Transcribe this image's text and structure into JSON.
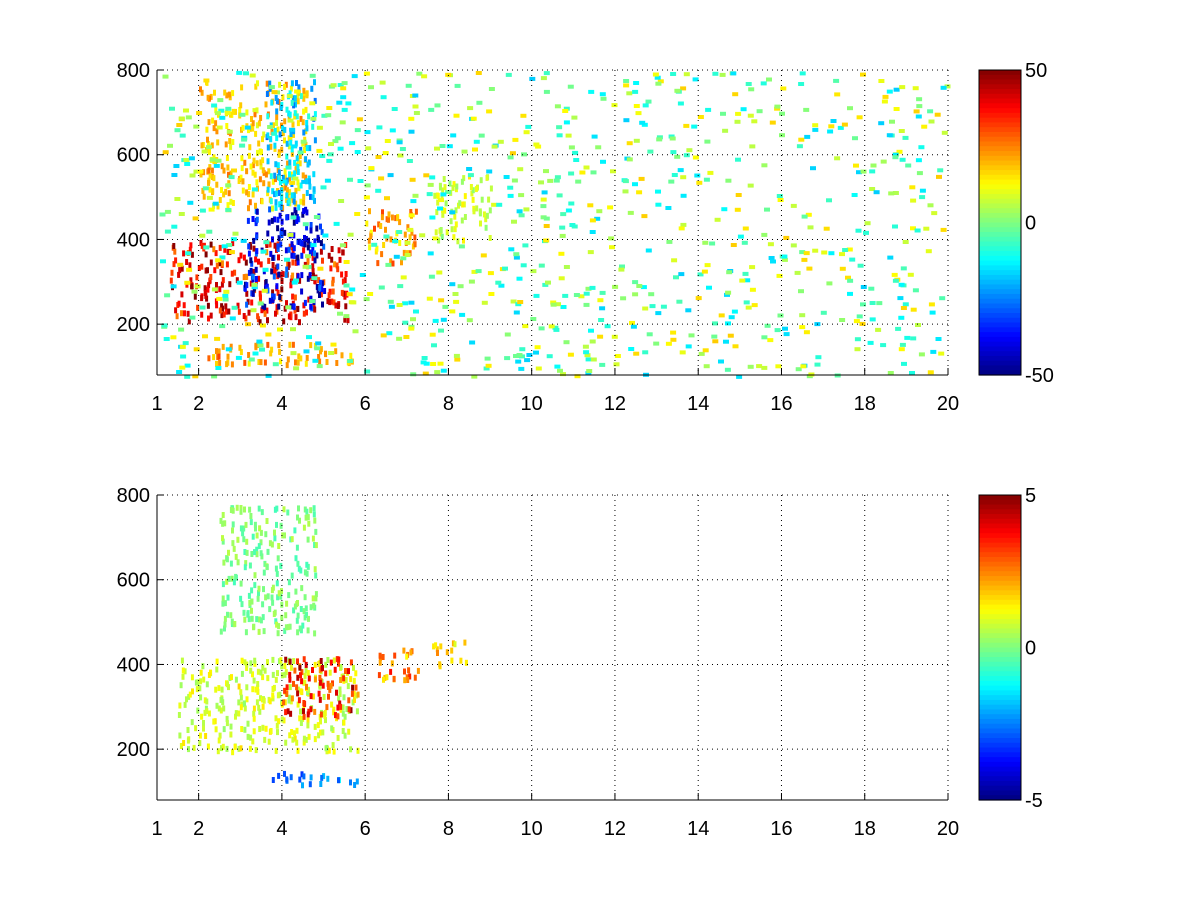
{
  "chart_data": [
    {
      "type": "heatmap",
      "title": "",
      "xlabel": "",
      "ylabel": "",
      "xlim": [
        1,
        20
      ],
      "ylim": [
        80,
        800
      ],
      "x_ticks": [
        1,
        2,
        4,
        6,
        8,
        10,
        12,
        14,
        16,
        18,
        20
      ],
      "y_ticks": [
        200,
        400,
        600,
        800
      ],
      "grid": true,
      "colormap": "jet",
      "colorbar": {
        "range": [
          -50,
          50
        ],
        "ticks": [
          50,
          0,
          -50
        ]
      },
      "features": [
        {
          "x": [
            1.3,
            5.6
          ],
          "y": [
            210,
            400
          ],
          "value": 45,
          "note": ""
        },
        {
          "x": [
            3.0,
            5.0
          ],
          "y": [
            240,
            480
          ],
          "value": -45
        },
        {
          "x": [
            2.0,
            4.6
          ],
          "y": [
            480,
            780
          ],
          "value": 20
        },
        {
          "x": [
            3.6,
            4.8
          ],
          "y": [
            480,
            780
          ],
          "value": -20
        },
        {
          "x": [
            2.2,
            5.8
          ],
          "y": [
            110,
            160
          ],
          "value": 25
        },
        {
          "x": [
            6.0,
            7.2
          ],
          "y": [
            350,
            480
          ],
          "value": 25
        },
        {
          "x": [
            7.6,
            9.0
          ],
          "y": [
            400,
            560
          ],
          "value": 8
        }
      ]
    },
    {
      "type": "heatmap",
      "title": "",
      "xlabel": "",
      "ylabel": "",
      "xlim": [
        1,
        20
      ],
      "ylim": [
        80,
        800
      ],
      "x_ticks": [
        1,
        2,
        4,
        6,
        8,
        10,
        12,
        14,
        16,
        18,
        20
      ],
      "y_ticks": [
        200,
        400,
        600,
        800
      ],
      "grid": true,
      "colormap": "jet",
      "colorbar": {
        "range": [
          -5,
          5
        ],
        "ticks": [
          5,
          0,
          -5
        ]
      },
      "features": [
        {
          "x": [
            1.5,
            5.8
          ],
          "y": [
            200,
            420
          ],
          "value": 1
        },
        {
          "x": [
            4.0,
            5.8
          ],
          "y": [
            280,
            420
          ],
          "value": 4
        },
        {
          "x": [
            2.5,
            4.8
          ],
          "y": [
            480,
            780
          ],
          "value": 0
        },
        {
          "x": [
            3.6,
            5.8
          ],
          "y": [
            120,
            150
          ],
          "value": -3
        },
        {
          "x": [
            6.3,
            7.3
          ],
          "y": [
            360,
            440
          ],
          "value": 3
        },
        {
          "x": [
            7.6,
            8.4
          ],
          "y": [
            400,
            460
          ],
          "value": 2
        }
      ]
    }
  ]
}
